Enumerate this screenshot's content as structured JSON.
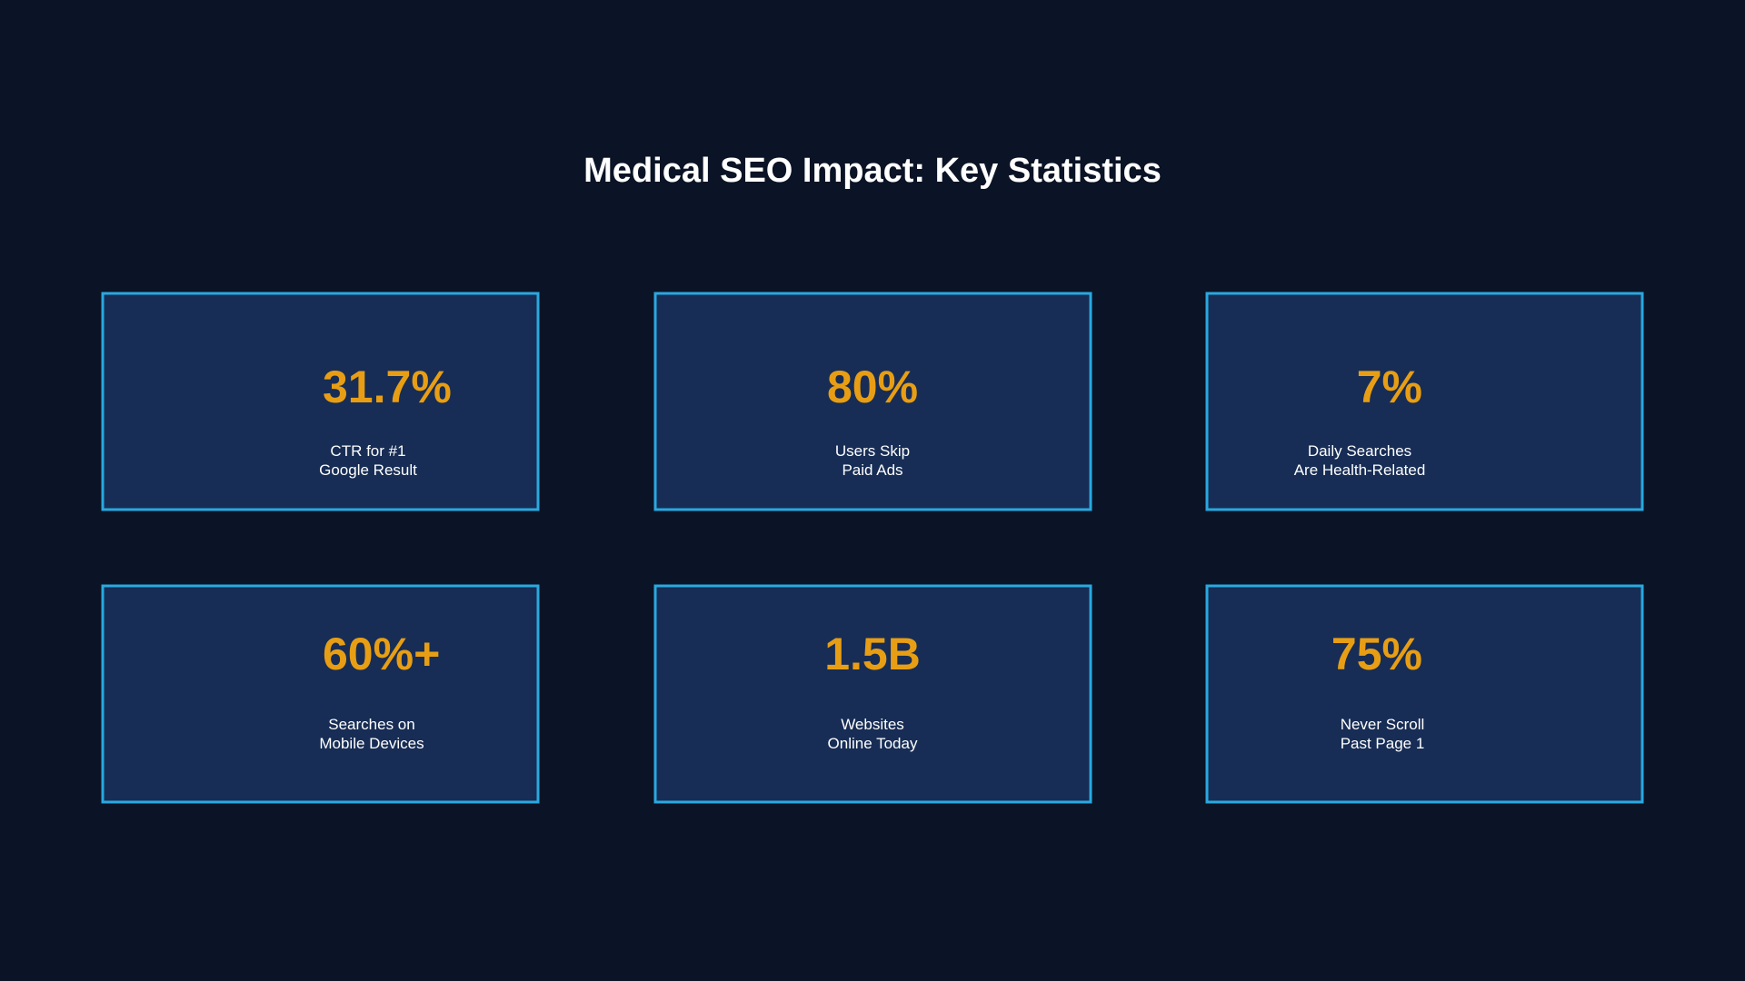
{
  "title": "Medical SEO Impact: Key Statistics",
  "colors": {
    "background": "#0b1426",
    "card": "#172d55",
    "border": "#29a9e0",
    "value": "#e89e14",
    "text": "#ffffff"
  },
  "stats": [
    {
      "value": "31.7%",
      "label_lines": [
        "CTR for #1",
        "Google Result"
      ]
    },
    {
      "value": "80%",
      "label_lines": [
        "Users Skip",
        "Paid Ads"
      ]
    },
    {
      "value": "7%",
      "label_lines": [
        "Daily Searches",
        "Are Health-Related"
      ]
    },
    {
      "value": "60%+",
      "label_lines": [
        "Searches on",
        "Mobile Devices"
      ]
    },
    {
      "value": "1.5B",
      "label_lines": [
        "Websites",
        "Online Today"
      ]
    },
    {
      "value": "75%",
      "label_lines": [
        "Never Scroll",
        "Past Page 1"
      ]
    }
  ]
}
